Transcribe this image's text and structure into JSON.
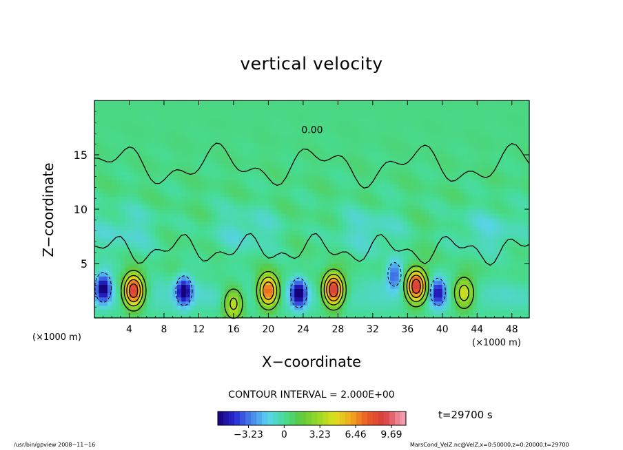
{
  "chart_data": {
    "type": "heatmap",
    "title": "vertical velocity",
    "xlabel": "X−coordinate",
    "ylabel": "Z−coordinate",
    "x_unit": "(×1000 m)",
    "x_ticks": [
      "4",
      "8",
      "12",
      "16",
      "20",
      "24",
      "28",
      "32",
      "36",
      "40",
      "44",
      "48"
    ],
    "y_ticks": [
      "5",
      "10",
      "15"
    ],
    "xlim": [
      0,
      50
    ],
    "ylim": [
      0,
      20
    ],
    "contour_interval_text": "CONTOUR INTERVAL = 2.000E+00",
    "contour_label": "0.00",
    "colorbar_ticks": [
      "−3.23",
      "0",
      "3.23",
      "6.46",
      "9.69"
    ],
    "colorbar_values": [
      -3.23,
      0,
      3.23,
      6.46,
      9.69
    ],
    "color_range": [
      -6.0,
      11.0
    ],
    "time_text": "t=29700 s",
    "updrafts": [
      {
        "x": 4.5,
        "z": 2.5,
        "w": 9.5
      },
      {
        "x": 16.0,
        "z": 1.3,
        "w": 4.5
      },
      {
        "x": 20.0,
        "z": 2.5,
        "w": 8.0
      },
      {
        "x": 27.5,
        "z": 2.6,
        "w": 9.7
      },
      {
        "x": 37.0,
        "z": 2.9,
        "w": 9.6
      },
      {
        "x": 42.5,
        "z": 2.3,
        "w": 5.0
      }
    ],
    "downdrafts": [
      {
        "x": 1.0,
        "z": 2.8,
        "w": -6.0
      },
      {
        "x": 10.3,
        "z": 2.5,
        "w": -6.0
      },
      {
        "x": 23.5,
        "z": 2.3,
        "w": -6.0
      },
      {
        "x": 34.5,
        "z": 4.0,
        "w": -4.0
      },
      {
        "x": 39.5,
        "z": 2.4,
        "w": -5.0
      }
    ]
  },
  "footer_left": "/usr/bin/gpview   2008−11−16",
  "footer_right": "MarsCond_VelZ.nc@VelZ,x=0:50000,z=0:20000,t=29700"
}
